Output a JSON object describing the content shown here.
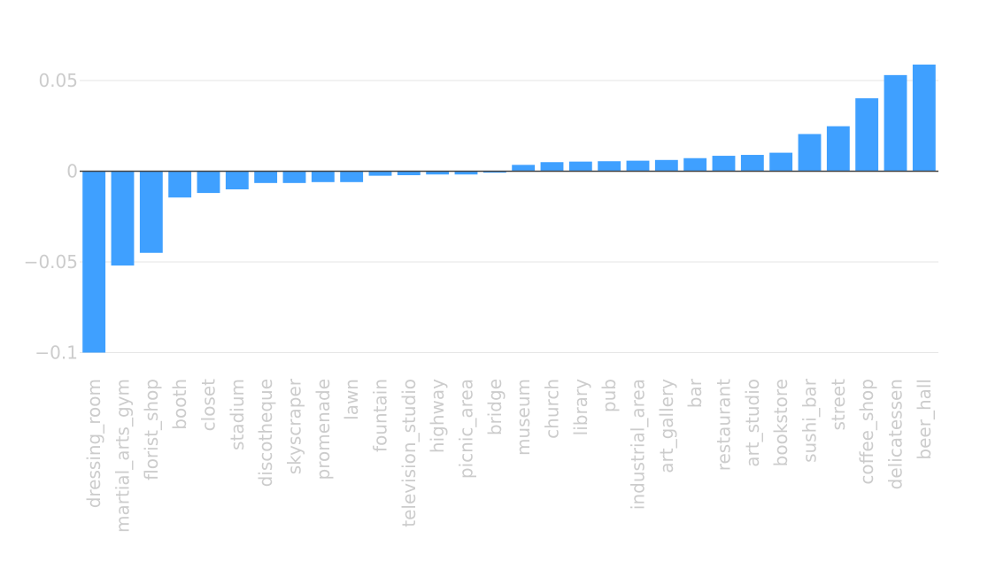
{
  "chart_data": {
    "type": "bar",
    "title": "",
    "xlabel": "",
    "ylabel": "",
    "categories": [
      "dressing_room",
      "martial_arts_gym",
      "florist_shop",
      "booth",
      "closet",
      "stadium",
      "discotheque",
      "skyscraper",
      "promenade",
      "lawn",
      "fountain",
      "television_studio",
      "highway",
      "picnic_area",
      "bridge",
      "museum",
      "church",
      "library",
      "pub",
      "industrial_area",
      "art_gallery",
      "bar",
      "restaurant",
      "art_studio",
      "bookstore",
      "sushi_bar",
      "street",
      "coffee_shop",
      "delicatessen",
      "beer_hall"
    ],
    "values": [
      -0.1,
      -0.052,
      -0.045,
      -0.0145,
      -0.012,
      -0.01,
      -0.0065,
      -0.0065,
      -0.006,
      -0.006,
      -0.0025,
      -0.0022,
      -0.0018,
      -0.0018,
      -0.0008,
      0.0035,
      0.005,
      0.0053,
      0.0055,
      0.0058,
      0.0062,
      0.0072,
      0.0085,
      0.009,
      0.0102,
      0.0205,
      0.0248,
      0.0402,
      0.053,
      0.0588
    ],
    "yticks": [
      {
        "value": 0.05,
        "label": "0.05"
      },
      {
        "value": 0,
        "label": "0"
      },
      {
        "value": -0.05,
        "label": "−0.05"
      },
      {
        "value": -0.1,
        "label": "−0.1"
      }
    ],
    "ylim": [
      -0.1,
      0.059
    ],
    "grid": true,
    "colors": {
      "bar": "#3fa0ff",
      "grid": "#e6e6e6",
      "zeroline": "#444444",
      "tick_text": "#cccccc"
    }
  }
}
